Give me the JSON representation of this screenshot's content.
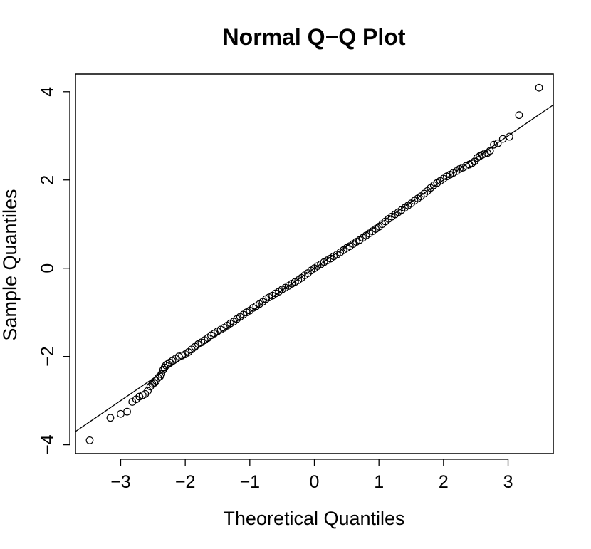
{
  "chart_data": {
    "type": "scatter",
    "title": "Normal Q−Q Plot",
    "xlabel": "Theoretical Quantiles",
    "ylabel": "Sample Quantiles",
    "xlim": [
      -3.7,
      3.7
    ],
    "ylim": [
      -4.2,
      4.4
    ],
    "x_ticks": [
      -3,
      -2,
      -1,
      0,
      1,
      2,
      3
    ],
    "x_tick_labels": [
      "−3",
      "−2",
      "−1",
      "0",
      "1",
      "2",
      "3"
    ],
    "y_ticks": [
      -4,
      -2,
      0,
      2,
      4
    ],
    "y_tick_labels": [
      "−4",
      "−2",
      "0",
      "2",
      "4"
    ],
    "grid": false,
    "legend": "none",
    "reference_line": {
      "intercept": 0.0,
      "slope": 1.0
    },
    "series": [
      {
        "marker": "open-circle",
        "color": "#000000",
        "points": [
          [
            -3.48,
            -3.9
          ],
          [
            -3.16,
            -3.39
          ],
          [
            -3.0,
            -3.3
          ],
          [
            -2.9,
            -3.25
          ],
          [
            -2.82,
            -3.03
          ],
          [
            -2.76,
            -2.97
          ],
          [
            -2.71,
            -2.91
          ],
          [
            -2.66,
            -2.88
          ],
          [
            -2.62,
            -2.85
          ],
          [
            -2.58,
            -2.78
          ],
          [
            -2.54,
            -2.68
          ],
          [
            -2.51,
            -2.62
          ],
          [
            -2.48,
            -2.6
          ],
          [
            -2.45,
            -2.55
          ],
          [
            -2.42,
            -2.48
          ],
          [
            -2.39,
            -2.45
          ],
          [
            -2.37,
            -2.4
          ],
          [
            -2.34,
            -2.3
          ],
          [
            -2.32,
            -2.25
          ],
          [
            -2.3,
            -2.2
          ],
          [
            -2.27,
            -2.17
          ],
          [
            -2.24,
            -2.14
          ],
          [
            -2.2,
            -2.1
          ],
          [
            -2.15,
            -2.05
          ],
          [
            -2.1,
            -2.0
          ],
          [
            -2.05,
            -1.98
          ],
          [
            -2.0,
            -1.95
          ],
          [
            -1.95,
            -1.9
          ],
          [
            -1.9,
            -1.84
          ],
          [
            -1.85,
            -1.78
          ],
          [
            -1.8,
            -1.72
          ],
          [
            -1.75,
            -1.68
          ],
          [
            -1.7,
            -1.63
          ],
          [
            -1.65,
            -1.58
          ],
          [
            -1.6,
            -1.52
          ],
          [
            -1.55,
            -1.48
          ],
          [
            -1.5,
            -1.43
          ],
          [
            -1.45,
            -1.39
          ],
          [
            -1.4,
            -1.35
          ],
          [
            -1.35,
            -1.3
          ],
          [
            -1.3,
            -1.25
          ],
          [
            -1.25,
            -1.21
          ],
          [
            -1.2,
            -1.15
          ],
          [
            -1.15,
            -1.1
          ],
          [
            -1.1,
            -1.05
          ],
          [
            -1.05,
            -1.0
          ],
          [
            -1.0,
            -0.96
          ],
          [
            -0.95,
            -0.9
          ],
          [
            -0.9,
            -0.86
          ],
          [
            -0.85,
            -0.81
          ],
          [
            -0.8,
            -0.76
          ],
          [
            -0.75,
            -0.7
          ],
          [
            -0.7,
            -0.66
          ],
          [
            -0.65,
            -0.62
          ],
          [
            -0.6,
            -0.57
          ],
          [
            -0.55,
            -0.53
          ],
          [
            -0.5,
            -0.48
          ],
          [
            -0.45,
            -0.44
          ],
          [
            -0.4,
            -0.4
          ],
          [
            -0.35,
            -0.35
          ],
          [
            -0.3,
            -0.31
          ],
          [
            -0.25,
            -0.27
          ],
          [
            -0.2,
            -0.22
          ],
          [
            -0.15,
            -0.16
          ],
          [
            -0.1,
            -0.11
          ],
          [
            -0.05,
            -0.05
          ],
          [
            0.0,
            0.0
          ],
          [
            0.05,
            0.05
          ],
          [
            0.1,
            0.09
          ],
          [
            0.15,
            0.14
          ],
          [
            0.2,
            0.18
          ],
          [
            0.25,
            0.22
          ],
          [
            0.3,
            0.27
          ],
          [
            0.35,
            0.31
          ],
          [
            0.4,
            0.36
          ],
          [
            0.45,
            0.41
          ],
          [
            0.5,
            0.46
          ],
          [
            0.55,
            0.5
          ],
          [
            0.6,
            0.55
          ],
          [
            0.65,
            0.6
          ],
          [
            0.7,
            0.64
          ],
          [
            0.75,
            0.69
          ],
          [
            0.8,
            0.74
          ],
          [
            0.85,
            0.79
          ],
          [
            0.9,
            0.84
          ],
          [
            0.95,
            0.89
          ],
          [
            1.0,
            0.94
          ],
          [
            1.05,
            1.0
          ],
          [
            1.1,
            1.06
          ],
          [
            1.15,
            1.12
          ],
          [
            1.2,
            1.17
          ],
          [
            1.25,
            1.22
          ],
          [
            1.3,
            1.27
          ],
          [
            1.35,
            1.32
          ],
          [
            1.4,
            1.37
          ],
          [
            1.45,
            1.42
          ],
          [
            1.5,
            1.47
          ],
          [
            1.55,
            1.53
          ],
          [
            1.6,
            1.58
          ],
          [
            1.65,
            1.63
          ],
          [
            1.7,
            1.69
          ],
          [
            1.75,
            1.75
          ],
          [
            1.8,
            1.82
          ],
          [
            1.85,
            1.88
          ],
          [
            1.9,
            1.93
          ],
          [
            1.95,
            1.98
          ],
          [
            2.0,
            2.03
          ],
          [
            2.05,
            2.08
          ],
          [
            2.1,
            2.12
          ],
          [
            2.15,
            2.16
          ],
          [
            2.2,
            2.2
          ],
          [
            2.25,
            2.25
          ],
          [
            2.3,
            2.28
          ],
          [
            2.35,
            2.32
          ],
          [
            2.4,
            2.35
          ],
          [
            2.44,
            2.38
          ],
          [
            2.48,
            2.42
          ],
          [
            2.52,
            2.5
          ],
          [
            2.56,
            2.54
          ],
          [
            2.6,
            2.57
          ],
          [
            2.64,
            2.6
          ],
          [
            2.68,
            2.61
          ],
          [
            2.72,
            2.66
          ],
          [
            2.78,
            2.8
          ],
          [
            2.84,
            2.83
          ],
          [
            2.92,
            2.93
          ],
          [
            3.02,
            2.98
          ],
          [
            3.17,
            3.47
          ],
          [
            3.48,
            4.09
          ]
        ]
      }
    ]
  }
}
